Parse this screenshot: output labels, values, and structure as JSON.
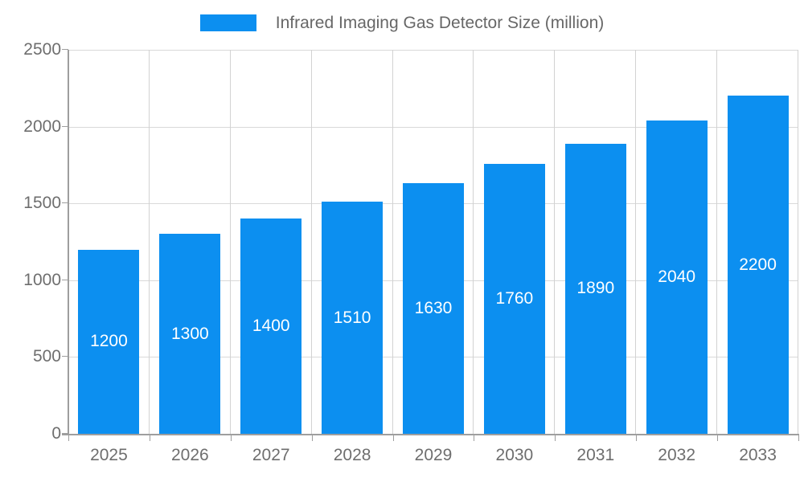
{
  "legend": {
    "label": "Infrared Imaging Gas Detector Size (million)"
  },
  "colors": {
    "bar": "#0C8FF0",
    "value_label": "#ffffff",
    "grid": "#d9d9d9",
    "axis": "#9e9e9e",
    "tick_text": "#6e6e6e",
    "background": "#ffffff"
  },
  "chart_data": {
    "type": "bar",
    "title": "Infrared Imaging Gas Detector Size (million)",
    "series_name": "Infrared Imaging Gas Detector Size (million)",
    "categories": [
      "2025",
      "2026",
      "2027",
      "2028",
      "2029",
      "2030",
      "2031",
      "2032",
      "2033"
    ],
    "values": [
      1200,
      1300,
      1400,
      1510,
      1630,
      1760,
      1890,
      2040,
      2200
    ],
    "value_labels": [
      "1200",
      "1300",
      "1400",
      "1510",
      "1630",
      "1760",
      "1890",
      "2040",
      "2200"
    ],
    "xlabel": "",
    "ylabel": "",
    "ylim": [
      0,
      2500
    ],
    "yticks": [
      0,
      500,
      1000,
      1500,
      2000,
      2500
    ],
    "grid": true,
    "legend_position": "top-center",
    "value_label_position": "inside-center"
  }
}
